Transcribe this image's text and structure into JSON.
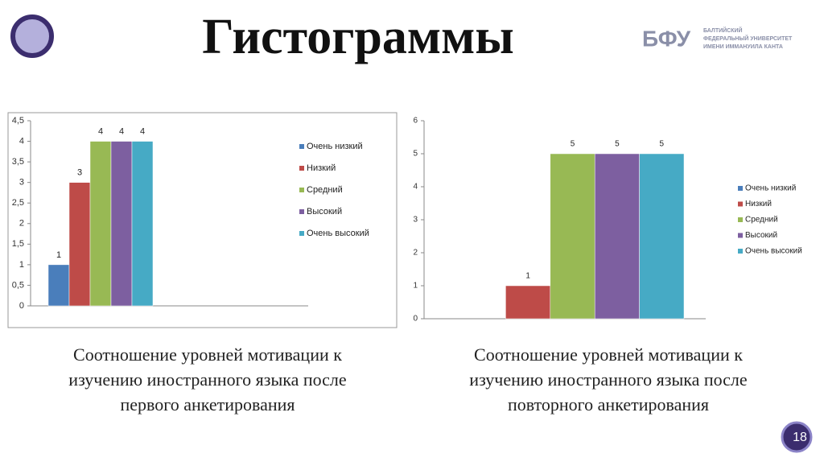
{
  "title": "Гистограммы",
  "logo": {
    "abbr": "БФУ",
    "lines": [
      "БАЛТИЙСКИЙ",
      "ФЕДЕРАЛЬНЫЙ УНИВЕРСИТЕТ",
      "ИМЕНИ ИММАНУИЛА КАНТА"
    ]
  },
  "page_number": 18,
  "captions": [
    [
      "Соотношение уровней мотивации к",
      "изучению иностранного языка после",
      "первого анкетирования"
    ],
    [
      "Соотношение уровней мотивации к",
      "изучению иностранного языка после",
      "повторного анкетирования"
    ]
  ],
  "chart_data": [
    {
      "type": "bar",
      "grid": false,
      "legend": "right",
      "ylim": [
        0,
        4.5
      ],
      "yticks": [
        0,
        {
          "value": 0.5,
          "label": "0,5"
        },
        1,
        {
          "value": 1.5,
          "label": "1,5"
        },
        2,
        {
          "value": 2.5,
          "label": "2,5"
        },
        3,
        {
          "value": 3.5,
          "label": "3,5"
        },
        4,
        {
          "value": 4.5,
          "label": "4,5"
        }
      ],
      "series": [
        {
          "name": "Очень низкий",
          "color": "#4a7ebb",
          "values": [
            1
          ]
        },
        {
          "name": "Низкий",
          "color": "#be4b48",
          "values": [
            3
          ]
        },
        {
          "name": "Средний",
          "color": "#98b954",
          "values": [
            4
          ]
        },
        {
          "name": "Высокий",
          "color": "#7d5fa0",
          "values": [
            4
          ]
        },
        {
          "name": "Очень высокий",
          "color": "#46aac5",
          "values": [
            4
          ]
        }
      ]
    },
    {
      "type": "bar",
      "grid": false,
      "legend": "right",
      "ylim": [
        0,
        6
      ],
      "yticks": [
        0,
        1,
        2,
        3,
        4,
        5,
        6
      ],
      "series": [
        {
          "name": "Очень низкий",
          "color": "#4a7ebb",
          "values": [
            null
          ]
        },
        {
          "name": "Низкий",
          "color": "#be4b48",
          "values": [
            1
          ]
        },
        {
          "name": "Средний",
          "color": "#98b954",
          "values": [
            5
          ]
        },
        {
          "name": "Высокий",
          "color": "#7d5fa0",
          "values": [
            5
          ]
        },
        {
          "name": "Очень высокий",
          "color": "#46aac5",
          "values": [
            5
          ]
        }
      ]
    }
  ]
}
